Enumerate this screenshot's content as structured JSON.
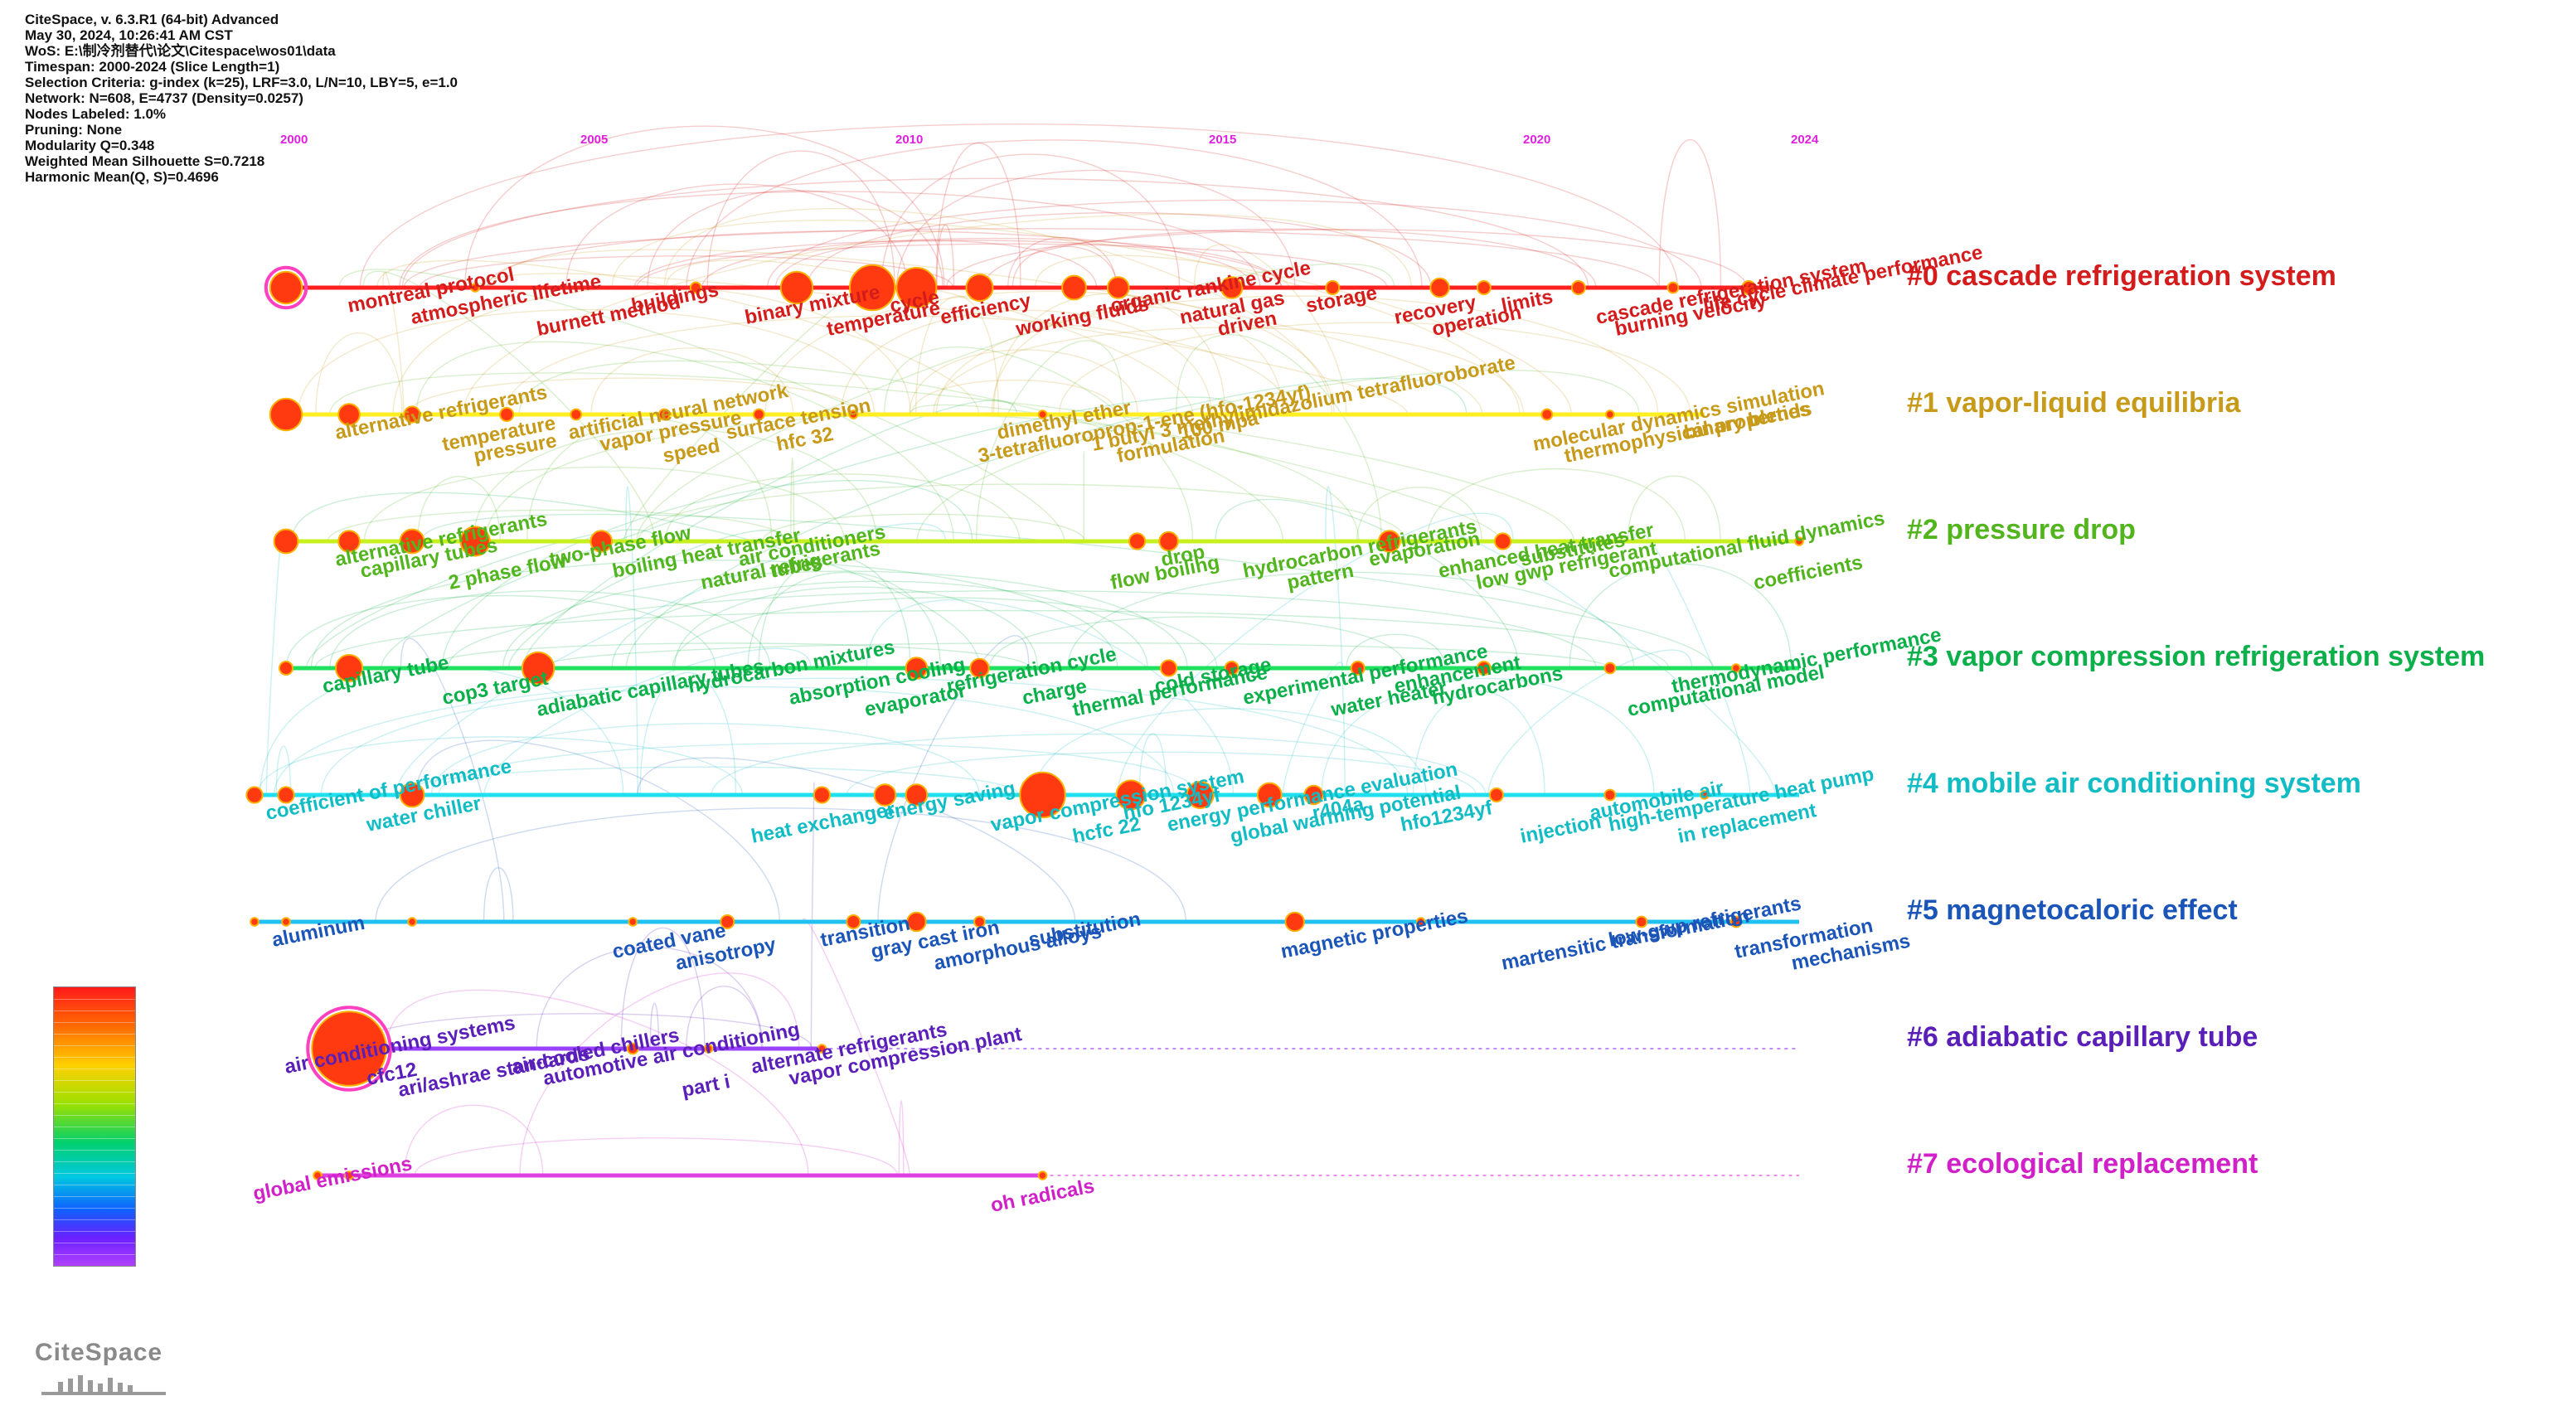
{
  "metadata_lines": [
    "CiteSpace, v. 6.3.R1 (64-bit) Advanced",
    "May 30, 2024, 10:26:41 AM CST",
    "WoS: E:\\制冷剂替代\\论文\\Citespace\\wos01\\data",
    "Timespan: 2000-2024 (Slice Length=1)",
    "Selection Criteria: g-index (k=25), LRF=3.0, L/N=10, LBY=5, e=1.0",
    "Network: N=608, E=4737 (Density=0.0257)",
    "Nodes Labeled: 1.0%",
    "Pruning: None",
    "Modularity Q=0.348",
    "Weighted Mean Silhouette S=0.7218",
    "Harmonic Mean(Q, S)=0.4696"
  ],
  "years": [
    "2000",
    "2005",
    "2010",
    "2015",
    "2020",
    "2024"
  ],
  "year_values": [
    2000,
    2005,
    2010,
    2015,
    2020,
    2024
  ],
  "year_range": [
    2000,
    2024
  ],
  "colors": {
    "c0": "#d41c1c",
    "c1": "#c79a1a",
    "c2": "#52b51e",
    "c3": "#0cb04a",
    "c4": "#12bcc4",
    "c5": "#1b55b8",
    "c6": "#5a1fb8",
    "c7": "#d020c8",
    "node": "#ff3a10",
    "node_ring": "#ffb000"
  },
  "clusters": [
    {
      "id": "c0",
      "label": "#0 cascade refrigeration system",
      "line_start": 2000,
      "line_end": 2023.5,
      "line_color": "#ff2020",
      "keywords": [
        {
          "text": "montreal protocol",
          "year": 2001
        },
        {
          "text": "atmospheric lifetime",
          "year": 2002
        },
        {
          "text": "burnett method",
          "year": 2004
        },
        {
          "text": "buildings",
          "year": 2005.5
        },
        {
          "text": "binary mixture",
          "year": 2007.3
        },
        {
          "text": "temperature",
          "year": 2008.6
        },
        {
          "text": "cycle",
          "year": 2009.6
        },
        {
          "text": "efficiency",
          "year": 2010.4
        },
        {
          "text": "working fluids",
          "year": 2011.6
        },
        {
          "text": "organic rankine cycle",
          "year": 2013.1
        },
        {
          "text": "natural gas",
          "year": 2014.2
        },
        {
          "text": "driven",
          "year": 2014.8
        },
        {
          "text": "storage",
          "year": 2016.2
        },
        {
          "text": "recovery",
          "year": 2017.6
        },
        {
          "text": "operation",
          "year": 2018.2
        },
        {
          "text": "limits",
          "year": 2019.3
        },
        {
          "text": "cascade refrigeration system",
          "year": 2020.8
        },
        {
          "text": "burning velocity",
          "year": 2021.1
        },
        {
          "text": "life cycle climate performance",
          "year": 2022.5
        }
      ],
      "nodes": [
        {
          "year": 2000,
          "size": 12,
          "ring": true
        },
        {
          "year": 2008.1,
          "size": 12
        },
        {
          "year": 2009.3,
          "size": 17
        },
        {
          "year": 2010,
          "size": 15
        },
        {
          "year": 2011,
          "size": 10
        },
        {
          "year": 2012.5,
          "size": 9
        },
        {
          "year": 2013.2,
          "size": 8
        },
        {
          "year": 2015,
          "size": 8
        },
        {
          "year": 2018.3,
          "size": 7
        },
        {
          "year": 2019,
          "size": 5
        },
        {
          "year": 2020.5,
          "size": 5
        },
        {
          "year": 2022,
          "size": 4
        },
        {
          "year": 2023.2,
          "size": 5
        },
        {
          "year": 2003,
          "size": 3
        },
        {
          "year": 2006.5,
          "size": 4
        },
        {
          "year": 2016.6,
          "size": 5
        }
      ]
    },
    {
      "id": "c1",
      "label": "#1 vapor-liquid equilibria",
      "line_start": 2000,
      "line_end": 2022.5,
      "line_color": "#ffee20",
      "keywords": [
        {
          "text": "alternative refrigerants",
          "year": 2000.8
        },
        {
          "text": "temperature",
          "year": 2002.5
        },
        {
          "text": "pressure",
          "year": 2003
        },
        {
          "text": "artificial neural network",
          "year": 2004.5
        },
        {
          "text": "vapor pressure",
          "year": 2005
        },
        {
          "text": "speed",
          "year": 2006
        },
        {
          "text": "surface tension",
          "year": 2007
        },
        {
          "text": "hfc 32",
          "year": 2007.8
        },
        {
          "text": "3-tetrafluoroprop-1-ene (hfo-1234yf)",
          "year": 2011
        },
        {
          "text": "dimethyl ether",
          "year": 2011.3
        },
        {
          "text": "1 butyl 3 methylimidazolium tetrafluoroborate",
          "year": 2012.8
        },
        {
          "text": "formulation",
          "year": 2013.2
        },
        {
          "text": "100 mpa",
          "year": 2014.2
        },
        {
          "text": "molecular dynamics simulation",
          "year": 2019.8
        },
        {
          "text": "thermophysical properties",
          "year": 2020.3
        },
        {
          "text": "binary blends",
          "year": 2022.2
        }
      ],
      "nodes": [
        {
          "year": 2000,
          "size": 12
        },
        {
          "year": 2001,
          "size": 8
        },
        {
          "year": 2002,
          "size": 6
        },
        {
          "year": 2003.5,
          "size": 5
        },
        {
          "year": 2004.6,
          "size": 4
        },
        {
          "year": 2006,
          "size": 4
        },
        {
          "year": 2007.5,
          "size": 4
        },
        {
          "year": 2020,
          "size": 4
        },
        {
          "year": 2021,
          "size": 3
        },
        {
          "year": 2009,
          "size": 3
        },
        {
          "year": 2012,
          "size": 3
        }
      ]
    },
    {
      "id": "c2",
      "label": "#2 pressure drop",
      "line_start": 2000,
      "line_end": 2024,
      "line_color": "#c8f020",
      "keywords": [
        {
          "text": "alternative refrigerants",
          "year": 2000.8
        },
        {
          "text": "capillary tubes",
          "year": 2001.2
        },
        {
          "text": "2 phase flow",
          "year": 2002.6
        },
        {
          "text": "two-phase flow",
          "year": 2004.2
        },
        {
          "text": "boiling heat transfer",
          "year": 2005.2
        },
        {
          "text": "natural refrigerants",
          "year": 2006.6
        },
        {
          "text": "air conditioners",
          "year": 2007.2
        },
        {
          "text": "tubes",
          "year": 2007.7
        },
        {
          "text": "flow boiling",
          "year": 2013.1
        },
        {
          "text": "drop",
          "year": 2013.9
        },
        {
          "text": "hydrocarbon refrigerants",
          "year": 2015.2
        },
        {
          "text": "pattern",
          "year": 2015.9
        },
        {
          "text": "evaporation",
          "year": 2017.2
        },
        {
          "text": "enhanced heat transfer",
          "year": 2018.3
        },
        {
          "text": "low gwp refrigerant",
          "year": 2018.9
        },
        {
          "text": "substitutes",
          "year": 2019.6
        },
        {
          "text": "computational fluid dynamics",
          "year": 2021
        },
        {
          "text": "coefficients",
          "year": 2023.3
        }
      ],
      "nodes": [
        {
          "year": 2000,
          "size": 9
        },
        {
          "year": 2001,
          "size": 8
        },
        {
          "year": 2002,
          "size": 9
        },
        {
          "year": 2003,
          "size": 11
        },
        {
          "year": 2005,
          "size": 8
        },
        {
          "year": 2013.5,
          "size": 6
        },
        {
          "year": 2014,
          "size": 7
        },
        {
          "year": 2017.5,
          "size": 8
        },
        {
          "year": 2019.3,
          "size": 6
        },
        {
          "year": 2024,
          "size": 3
        }
      ]
    },
    {
      "id": "c3",
      "label": "#3 vapor compression refrigeration system",
      "line_start": 2000,
      "line_end": 2024,
      "line_color": "#20e060",
      "keywords": [
        {
          "text": "capillary tube",
          "year": 2000.6
        },
        {
          "text": "cop3 target",
          "year": 2002.5
        },
        {
          "text": "adiabatic capillary tubes",
          "year": 2004
        },
        {
          "text": "hydrocarbon mixtures",
          "year": 2006.4
        },
        {
          "text": "absorption cooling",
          "year": 2008
        },
        {
          "text": "evaporator",
          "year": 2009.2
        },
        {
          "text": "refrigeration cycle",
          "year": 2010.5
        },
        {
          "text": "charge",
          "year": 2011.7
        },
        {
          "text": "thermal performance",
          "year": 2012.5
        },
        {
          "text": "cold storage",
          "year": 2013.8
        },
        {
          "text": "experimental performance",
          "year": 2015.2
        },
        {
          "text": "water heater",
          "year": 2016.6
        },
        {
          "text": "enhancement",
          "year": 2017.6
        },
        {
          "text": "hydrocarbons",
          "year": 2018.2
        },
        {
          "text": "computational model",
          "year": 2021.3
        },
        {
          "text": "thermodynamic performance",
          "year": 2022
        }
      ],
      "nodes": [
        {
          "year": 2000,
          "size": 5
        },
        {
          "year": 2001,
          "size": 10
        },
        {
          "year": 2004,
          "size": 12
        },
        {
          "year": 2010,
          "size": 8
        },
        {
          "year": 2011,
          "size": 7
        },
        {
          "year": 2014,
          "size": 6
        },
        {
          "year": 2015,
          "size": 5
        },
        {
          "year": 2017,
          "size": 5
        },
        {
          "year": 2019,
          "size": 5
        },
        {
          "year": 2021,
          "size": 4
        },
        {
          "year": 2023,
          "size": 3
        }
      ]
    },
    {
      "id": "c4",
      "label": "#4 mobile air conditioning system",
      "line_start": 1999.5,
      "line_end": 2024,
      "line_color": "#20e0f0",
      "keywords": [
        {
          "text": "coefficient of performance",
          "year": 1999.7
        },
        {
          "text": "water chiller",
          "year": 2001.3
        },
        {
          "text": "heat exchanger",
          "year": 2007.4
        },
        {
          "text": "energy saving",
          "year": 2009.5
        },
        {
          "text": "vapor compression system",
          "year": 2011.2
        },
        {
          "text": "hcfc 22",
          "year": 2012.5
        },
        {
          "text": "hfo 1234yf",
          "year": 2013.3
        },
        {
          "text": "energy performance evaluation",
          "year": 2014
        },
        {
          "text": "global warming potential",
          "year": 2015
        },
        {
          "text": "r404a",
          "year": 2016.3
        },
        {
          "text": "hfo1234yf",
          "year": 2017.7
        },
        {
          "text": "injection",
          "year": 2019.6
        },
        {
          "text": "automobile air",
          "year": 2020.7
        },
        {
          "text": "high-temperature heat pump",
          "year": 2021
        },
        {
          "text": "in replacement",
          "year": 2022.1
        }
      ],
      "nodes": [
        {
          "year": 1999.5,
          "size": 6
        },
        {
          "year": 2000,
          "size": 6
        },
        {
          "year": 2002,
          "size": 9
        },
        {
          "year": 2008.5,
          "size": 6
        },
        {
          "year": 2009.5,
          "size": 8
        },
        {
          "year": 2010,
          "size": 8
        },
        {
          "year": 2012,
          "size": 17
        },
        {
          "year": 2013.4,
          "size": 11
        },
        {
          "year": 2014.5,
          "size": 10
        },
        {
          "year": 2015.6,
          "size": 9
        },
        {
          "year": 2016.3,
          "size": 7
        },
        {
          "year": 2019.2,
          "size": 5
        },
        {
          "year": 2021,
          "size": 4
        },
        {
          "year": 2022.5,
          "size": 3
        }
      ]
    },
    {
      "id": "c5",
      "label": "#5 magnetocaloric effect",
      "line_start": 1999.5,
      "line_end": 2024,
      "line_color": "#20c0f0",
      "keywords": [
        {
          "text": "aluminum",
          "year": 1999.8
        },
        {
          "text": "coated vane",
          "year": 2005.2
        },
        {
          "text": "anisotropy",
          "year": 2006.2
        },
        {
          "text": "transition",
          "year": 2008.5
        },
        {
          "text": "gray cast iron",
          "year": 2009.3
        },
        {
          "text": "amorphous alloys",
          "year": 2010.3
        },
        {
          "text": "substitution",
          "year": 2011.8
        },
        {
          "text": "magnetic properties",
          "year": 2015.8
        },
        {
          "text": "martensitic transformation",
          "year": 2019.3
        },
        {
          "text": "low-gwp refrigerants",
          "year": 2021
        },
        {
          "text": "transformation",
          "year": 2023
        },
        {
          "text": "mechanisms",
          "year": 2023.9
        }
      ],
      "nodes": [
        {
          "year": 1999.5,
          "size": 3
        },
        {
          "year": 2000,
          "size": 3
        },
        {
          "year": 2002,
          "size": 3
        },
        {
          "year": 2005.5,
          "size": 3
        },
        {
          "year": 2007,
          "size": 5
        },
        {
          "year": 2009,
          "size": 5
        },
        {
          "year": 2010,
          "size": 7
        },
        {
          "year": 2011,
          "size": 4
        },
        {
          "year": 2016,
          "size": 7
        },
        {
          "year": 2018,
          "size": 3
        },
        {
          "year": 2021.5,
          "size": 4
        },
        {
          "year": 2023,
          "size": 4
        }
      ]
    },
    {
      "id": "c6",
      "label": "#6 adiabatic capillary tube",
      "line_start": 2001,
      "line_end": 2008.5,
      "line_color": "#9a40ff",
      "dotted_end": 2024,
      "keywords": [
        {
          "text": "air conditioning systems",
          "year": 2000
        },
        {
          "text": "cfc12",
          "year": 2001.3
        },
        {
          "text": "ari/ashrae standards",
          "year": 2001.8
        },
        {
          "text": "air-cooled chillers",
          "year": 2003.6
        },
        {
          "text": "automotive air conditioning",
          "year": 2004.1
        },
        {
          "text": "part i",
          "year": 2006.3
        },
        {
          "text": "alternate refrigerants",
          "year": 2007.4
        },
        {
          "text": "vapor compression plant",
          "year": 2008
        }
      ],
      "nodes": [
        {
          "year": 2001,
          "size": 28,
          "ring": true
        },
        {
          "year": 2005.5,
          "size": 4
        },
        {
          "year": 2006.7,
          "size": 3
        },
        {
          "year": 2008.5,
          "size": 3
        }
      ]
    },
    {
      "id": "c7",
      "label": "#7 ecological replacement",
      "line_start": 2000.5,
      "line_end": 2012,
      "line_color": "#e040e0",
      "dotted_end": 2024,
      "keywords": [
        {
          "text": "global emissions",
          "year": 1999.5
        },
        {
          "text": "oh radicals",
          "year": 2011.2
        }
      ],
      "nodes": [
        {
          "year": 2000.5,
          "size": 3
        },
        {
          "year": 2001,
          "size": 3
        },
        {
          "year": 2012,
          "size": 3
        }
      ]
    }
  ],
  "legend": {
    "type": "year-gradient"
  },
  "logo_text": "CiteSpace"
}
